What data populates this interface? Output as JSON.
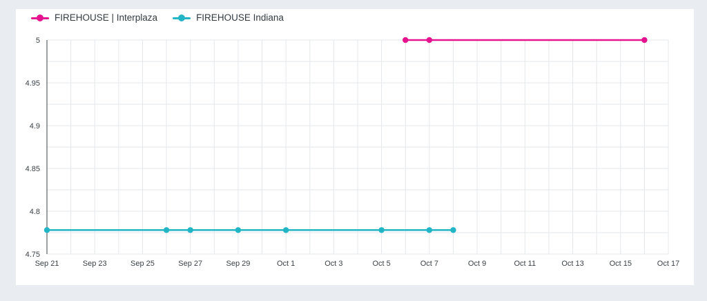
{
  "chart_data": {
    "type": "line",
    "x_axis_type": "date",
    "xlim": [
      "2020-09-21",
      "2020-10-17"
    ],
    "ylim": [
      4.75,
      5
    ],
    "grid": true,
    "legend_position": "top-left",
    "x_ticks": [
      "Sep 21",
      "Sep 23",
      "Sep 25",
      "Sep 27",
      "Sep 29",
      "Oct 1",
      "Oct 3",
      "Oct 5",
      "Oct 7",
      "Oct 9",
      "Oct 11",
      "Oct 13",
      "Oct 15",
      "Oct 17"
    ],
    "y_ticks": [
      "4.75",
      "4.8",
      "4.85",
      "4.9",
      "4.95",
      "5"
    ],
    "series": [
      {
        "name": "FIREHOUSE | Interplaza",
        "color": "#e6138f",
        "points": [
          {
            "x": "2020-10-06",
            "y": 5
          },
          {
            "x": "2020-10-07",
            "y": 5
          },
          {
            "x": "2020-10-16",
            "y": 5
          }
        ]
      },
      {
        "name": "FIREHOUSE Indiana",
        "color": "#22b5c6",
        "points": [
          {
            "x": "2020-09-21",
            "y": 4.778
          },
          {
            "x": "2020-09-26",
            "y": 4.778
          },
          {
            "x": "2020-09-27",
            "y": 4.778
          },
          {
            "x": "2020-09-29",
            "y": 4.778
          },
          {
            "x": "2020-10-01",
            "y": 4.778
          },
          {
            "x": "2020-10-05",
            "y": 4.778
          },
          {
            "x": "2020-10-07",
            "y": 4.778
          },
          {
            "x": "2020-10-08",
            "y": 4.778
          }
        ]
      }
    ]
  }
}
